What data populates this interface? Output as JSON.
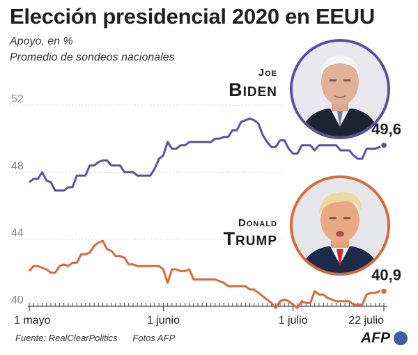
{
  "title": "Elección presidencial 2020 en EEUU",
  "subtitle": "Apoyo, en %",
  "subtitle2": "Promedio de sondeos nacionales",
  "colors": {
    "biden": "#5b4fa0",
    "trump": "#d9683a",
    "grid": "#c8c8c8"
  },
  "biden_label": {
    "first": "Joe",
    "last": "Biden"
  },
  "trump_label": {
    "first": "Donald",
    "last": "Trump"
  },
  "footer": {
    "source": "Fuente: RealClearPolitics",
    "photos": "Fotos AFP",
    "logo": "AFP"
  },
  "chart_data": {
    "type": "line",
    "title": "Elección presidencial 2020 en EEUU",
    "ylabel": "Apoyo, en %",
    "ylim": [
      40,
      54
    ],
    "yticks": [
      40,
      44,
      48,
      52
    ],
    "ytick_labels": [
      "40",
      "44",
      "48",
      "52"
    ],
    "x_days": 83,
    "x_ticks": [
      {
        "day": 0,
        "label": "1 mayo"
      },
      {
        "day": 31,
        "label": "1 junio"
      },
      {
        "day": 61,
        "label": "1 julio"
      },
      {
        "day": 82,
        "label": "22 julio"
      }
    ],
    "series": [
      {
        "name": "Biden",
        "end_label": "49,6",
        "values": [
          47.4,
          47.6,
          47.6,
          48.0,
          47.5,
          47.4,
          46.9,
          46.9,
          46.9,
          47.1,
          47.1,
          47.8,
          47.8,
          47.8,
          48.4,
          48.4,
          48.6,
          48.7,
          48.7,
          48.4,
          48.4,
          48.4,
          48.0,
          48.0,
          48.0,
          47.8,
          47.8,
          47.8,
          47.8,
          48.2,
          48.8,
          49.0,
          49.8,
          49.4,
          49.4,
          49.6,
          49.6,
          49.8,
          49.8,
          49.8,
          49.8,
          49.8,
          49.8,
          50.0,
          50.0,
          50.1,
          50.1,
          50.5,
          50.5,
          51.0,
          51.1,
          51.2,
          51.1,
          50.9,
          50.2,
          49.8,
          49.5,
          49.5,
          49.9,
          49.9,
          49.4,
          49.1,
          49.1,
          49.6,
          49.6,
          49.6,
          49.3,
          49.6,
          49.6,
          49.6,
          49.6,
          49.6,
          49.3,
          49.3,
          49.3,
          49.0,
          48.8,
          48.8,
          49.4,
          49.4,
          49.4,
          49.5,
          49.6
        ]
      },
      {
        "name": "Trump",
        "end_label": "40,9",
        "values": [
          42.1,
          42.4,
          42.4,
          42.3,
          42.2,
          42.0,
          42.0,
          42.4,
          42.5,
          42.4,
          42.6,
          42.6,
          43.1,
          43.1,
          43.2,
          43.6,
          43.8,
          43.9,
          43.4,
          43.3,
          43.0,
          43.0,
          42.9,
          42.5,
          42.5,
          42.4,
          42.4,
          42.4,
          42.4,
          42.4,
          42.4,
          42.2,
          41.4,
          42.2,
          42.2,
          42.1,
          42.1,
          42.2,
          41.6,
          41.6,
          41.6,
          41.6,
          41.6,
          41.6,
          41.5,
          41.4,
          41.2,
          41.2,
          41.2,
          41.2,
          41.2,
          41.0,
          41.0,
          40.8,
          40.6,
          40.4,
          40.2,
          39.9,
          40.3,
          40.4,
          40.3,
          40.1,
          39.9,
          40.3,
          40.2,
          40.2,
          40.9,
          40.7,
          40.7,
          40.5,
          40.4,
          40.3,
          40.3,
          40.3,
          40.3,
          40.1,
          40.1,
          40.1,
          40.7,
          40.8,
          40.8,
          40.9,
          40.9
        ]
      }
    ]
  }
}
